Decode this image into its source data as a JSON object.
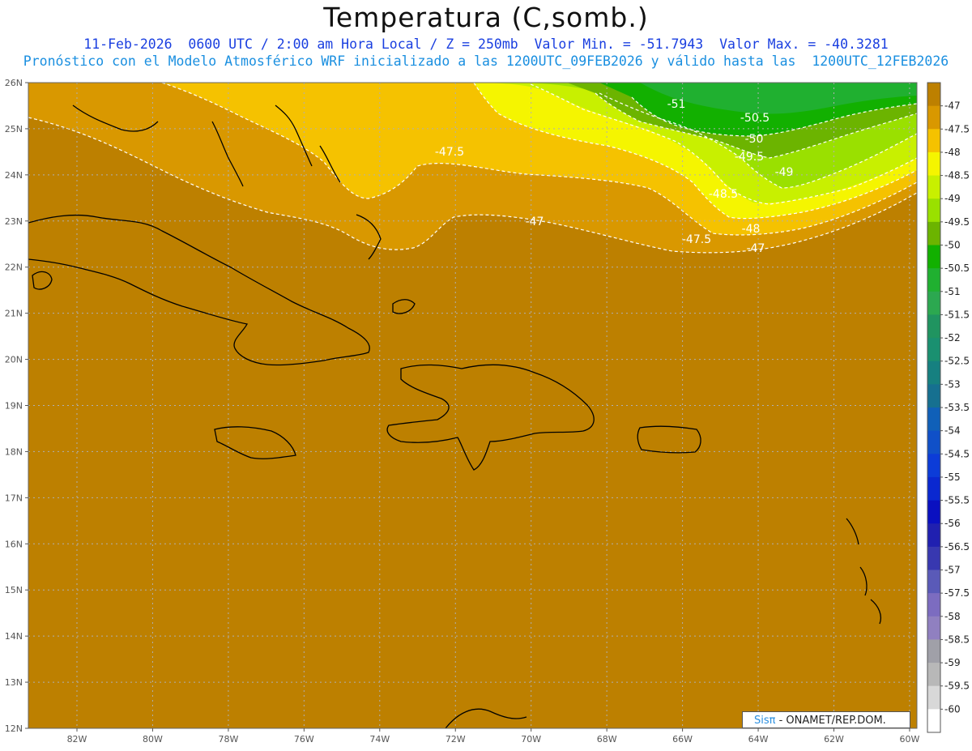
{
  "title": "Temperatura (C,somb.)",
  "subtitle_1": "11-Feb-2026  0600 UTC / 2:00 am Hora Local / Z = 250mb  Valor Min. = -51.7943  Valor Max. = -40.3281",
  "subtitle_2": "Pronóstico con el Modelo Atmosférico WRF inicializado a las 1200UTC_09FEB2026 y válido hasta las  1200UTC_12FEB2026",
  "credit": {
    "brand": "Sisπ",
    "org": " - ONAMET/REP.DOM."
  },
  "lat_labels": [
    "26N",
    "25N",
    "24N",
    "23N",
    "22N",
    "21N",
    "20N",
    "19N",
    "18N",
    "17N",
    "16N",
    "15N",
    "14N",
    "13N",
    "12N"
  ],
  "lon_labels": [
    "82W",
    "80W",
    "78W",
    "76W",
    "74W",
    "72W",
    "70W",
    "68W",
    "66W",
    "64W",
    "62W",
    "60W"
  ],
  "contour_labels": [
    "-51",
    "-50.5",
    "-50",
    "-49.5",
    "-49",
    "-48.5",
    "-48",
    "-47.5",
    "-47.5",
    "-47",
    "-47"
  ],
  "colorbar": {
    "labels": [
      "-47",
      "-47.5",
      "-48",
      "-48.5",
      "-49",
      "-49.5",
      "-50",
      "-50.5",
      "-51",
      "-51.5",
      "-52",
      "-52.5",
      "-53",
      "-53.5",
      "-54",
      "-54.5",
      "-55",
      "-55.5",
      "-56",
      "-56.5",
      "-57",
      "-57.5",
      "-58",
      "-58.5",
      "-59",
      "-59.5",
      "-60"
    ],
    "colors": [
      "#bd8000",
      "#d99800",
      "#f5c200",
      "#f5f500",
      "#c8f000",
      "#9ae000",
      "#6cb400",
      "#12b000",
      "#20b030",
      "#2ca850",
      "#209460",
      "#1a9070",
      "#168080",
      "#167090",
      "#1060b8",
      "#1050c8",
      "#0c3cd8",
      "#0a28d0",
      "#0a10c0",
      "#2020b0",
      "#3838b0",
      "#5a5ab8",
      "#7c6cc0",
      "#9080c0",
      "#a0a0a8",
      "#b8b8b8",
      "#d8d8d8",
      "#ffffff"
    ]
  },
  "colors": {
    "background_field": "#bd8000",
    "coast": "#000000",
    "grid": "#b0b0b0",
    "contour": "#ffffff"
  }
}
